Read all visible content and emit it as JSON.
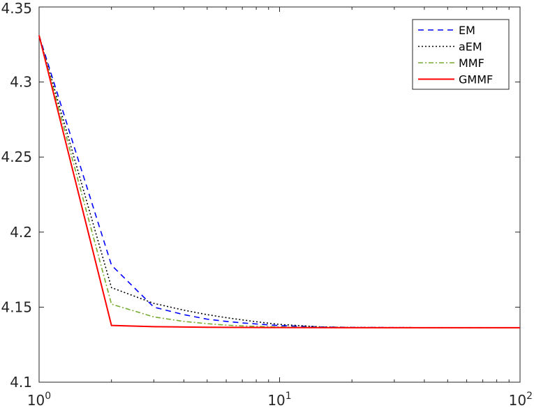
{
  "chart_data": {
    "type": "line",
    "title": "",
    "xlabel": "",
    "ylabel": "",
    "xscale": "log",
    "xlim": [
      1,
      100
    ],
    "ylim": [
      4.1,
      4.35
    ],
    "grid": false,
    "legend_position": "top-right",
    "y_ticks": [
      {
        "value": 4.1,
        "label": "4.1"
      },
      {
        "value": 4.15,
        "label": "4.15"
      },
      {
        "value": 4.2,
        "label": "4.2"
      },
      {
        "value": 4.25,
        "label": "4.25"
      },
      {
        "value": 4.3,
        "label": "4.3"
      },
      {
        "value": 4.35,
        "label": "4.35"
      }
    ],
    "x_ticks": [
      {
        "value": 1,
        "base": "10",
        "exp": "0"
      },
      {
        "value": 10,
        "base": "10",
        "exp": "1"
      },
      {
        "value": 100,
        "base": "10",
        "exp": "2"
      }
    ],
    "series": [
      {
        "name": "EM",
        "color": "#0000ff",
        "dash": "8,6",
        "x": [
          1,
          2,
          3,
          4,
          5,
          6,
          7,
          8,
          9,
          10,
          15,
          20,
          30,
          50,
          100
        ],
        "y": [
          4.331,
          4.178,
          4.15,
          4.145,
          4.142,
          4.1405,
          4.1395,
          4.1388,
          4.1382,
          4.1377,
          4.1368,
          4.1365,
          4.1364,
          4.1363,
          4.1363
        ]
      },
      {
        "name": "aEM",
        "color": "#000000",
        "dash": "2,3",
        "x": [
          1,
          2,
          3,
          4,
          5,
          6,
          7,
          8,
          9,
          10,
          15,
          20,
          30,
          50,
          100
        ],
        "y": [
          4.331,
          4.163,
          4.1525,
          4.148,
          4.145,
          4.143,
          4.1415,
          4.1403,
          4.1393,
          4.1385,
          4.1368,
          4.1365,
          4.1364,
          4.1363,
          4.1363
        ]
      },
      {
        "name": "MMF",
        "color": "#77ac30",
        "dash": "7,3,2,3",
        "x": [
          1,
          2,
          3,
          4,
          5,
          6,
          7,
          8,
          9,
          10,
          15,
          20,
          30,
          50,
          100
        ],
        "y": [
          4.331,
          4.152,
          4.1435,
          4.1405,
          4.139,
          4.138,
          4.1375,
          4.1372,
          4.137,
          4.1368,
          4.1365,
          4.1364,
          4.1363,
          4.1363,
          4.1363
        ]
      },
      {
        "name": "GMMF",
        "color": "#ff0000",
        "dash": "",
        "x": [
          1,
          2,
          3,
          5,
          10,
          20,
          50,
          100
        ],
        "y": [
          4.331,
          4.1378,
          4.137,
          4.1366,
          4.1364,
          4.1363,
          4.1363,
          4.1363
        ]
      }
    ]
  }
}
